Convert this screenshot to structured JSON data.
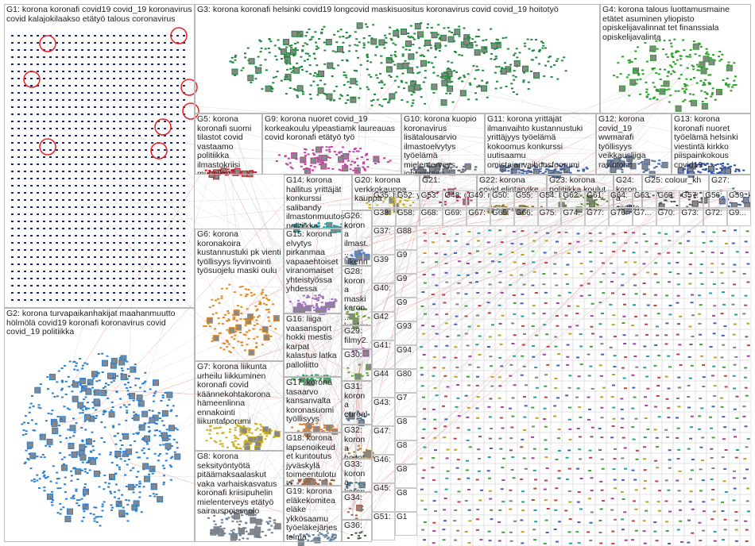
{
  "groups": [
    {
      "label": "G1: korona koronafi covid19 covid_19 koronavirus covid kalajokilaakso etätyö talous coronavirus"
    },
    {
      "label": "G2: korona turvapaikanhakijat maahanmuutto hölmölä covid19 koronafi koronavirus covid covid_19 politiikka"
    },
    {
      "label": "G3: korona koronafi helsinki covid19 longcovid maskisuositus koronavirus covid covid_19 hoitotyö"
    },
    {
      "label": "G4: korona talous luottamusmaine etätet asuminen yliopisto opiskelijavalinnat tet finanssiala opiskelijavalinta"
    },
    {
      "label": "G5: korona koronafi suomi tilastot covid vastaamo politiikka ilmastokriisi muusikot orkesterit"
    },
    {
      "label": "G9: korona nuoret covid_19 korkeakoulu ylpeastiamk laureauas covid koronafi etätyö työ"
    },
    {
      "label": "G10: korona kuopio koronavirus lisätalousarvio ilmastoelvytys työelämä mielenterveys johtaminen jaksaviela koronafi"
    },
    {
      "label": "G11: korona yrittäjät ilmanvaihto kustannustuki yrittäjyys työelämä kokoomus konkurssi uutisaamu omistajanvaihdosfoorumi"
    },
    {
      "label": "G12: korona covid_19 wwmarafi työllisyys veikkausliiga ravintolat"
    },
    {
      "label": "G13: korona koronafi nuoret työelämä helsinki viestintä kirkko piispainkokous covid19"
    },
    {
      "label": "G14: korona hallitus yrittäjät konkurssi salibandy ilmastonmuutos politiikka koronafi"
    },
    {
      "label": "G20: korona verkkokauppa kauppa"
    },
    {
      "label": "G21:"
    },
    {
      "label": "G22: korona covid elintarvike"
    },
    {
      "label": "G23: korona politiikka koulut"
    },
    {
      "label": "G24: korona sijoittaminen kouvola"
    },
    {
      "label": "G25: colour_kh"
    },
    {
      "label": "G27:"
    },
    {
      "label": "G6: korona koronakoira kustannustuki pk vienti työllisyys liyvinvointi työsuojelu maski oulu"
    },
    {
      "label": "G7: korona liikunta urheilu liikkuminen koronafi covid käännekohtakorona hämeenlinna ennakointi liikuntafoorumi"
    },
    {
      "label": "G8: korona seksityöntyötä pitäämaksaalaskut vaka varhaiskasvatus koronafi kriisipuhelin mielenterveys etätyö sairauspoissaolo"
    },
    {
      "label": "G15: korona elvytys pirkanmaa vapaaehtoiset viranomaiset yhteistyössa yhdessa"
    },
    {
      "label": "G16: liiga vaasansport hokki mestis karpat kalastus latka palloliitto"
    },
    {
      "label": "G17: korona tasaarvo kansanvalta koronasuomi työllisyys"
    },
    {
      "label": "G18: korona lapsenoikeudet kuntoutus jyväskylä toimeentulotuki"
    },
    {
      "label": "G19: korona eläkekomitea eläke ykkösaamu työeläkejärjestelmä"
    },
    {
      "label": "G26: korona ilmast... liikenne maskit..."
    },
    {
      "label": "G28: korona maski koron... keskiu..."
    },
    {
      "label": "G29: filmy2... policy... aapkis..."
    },
    {
      "label": "G30:"
    },
    {
      "label": "G31: korona euroal... konkur..."
    },
    {
      "label": "G32: korona hoitot..."
    },
    {
      "label": "G33: korona koron..."
    },
    {
      "label": "G34:"
    },
    {
      "label": "G36:"
    }
  ],
  "small_groups": [
    "G35: matk...",
    "G52: yksin...",
    "G53:",
    "G48: digio...",
    "G49: nuca...",
    "G50:",
    "G55:",
    "G54: bbsu...",
    "G62:",
    "G61:",
    "G64:",
    "G63:",
    "G60:",
    "G57:",
    "G56:",
    "G59: koro...",
    "G38:",
    "G58:",
    "G68:",
    "G69:",
    "G67:",
    "G65:",
    "G66:",
    "G75:",
    "G74:",
    "G77:",
    "G76:",
    "G7...",
    "G70:",
    "G73:",
    "G72:",
    "G9...",
    "G37:",
    "G39",
    "G40:",
    "G42",
    "G41:",
    "G44",
    "G43:",
    "G47:",
    "G46:",
    "G45:",
    "G51:",
    "G88",
    "G9",
    "G9",
    "G9",
    "G93",
    "G94",
    "G80",
    "G7",
    "G8",
    "G8",
    "G8",
    "G8",
    "G1"
  ]
}
